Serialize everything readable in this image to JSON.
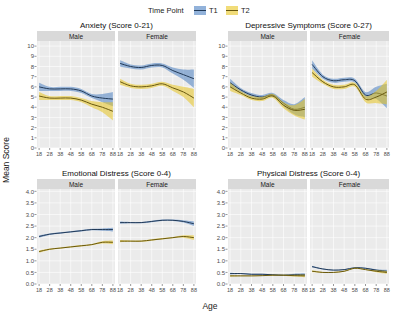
{
  "chart_data": {
    "type": "line",
    "legend_title": "Time Point",
    "legend": "top",
    "x_label": "Age",
    "y_label": "Mean Score",
    "grid": true,
    "x": [
      18,
      28,
      38,
      48,
      58,
      68,
      78,
      88
    ],
    "xlim": [
      16,
      90
    ],
    "xticks": [
      18,
      28,
      38,
      48,
      58,
      68,
      78,
      88
    ],
    "charts": [
      {
        "title": "Anxiety (Score 0-21)",
        "ylim": [
          0,
          10.5
        ],
        "yticks": [
          0,
          1,
          2,
          3,
          4,
          5,
          6,
          7,
          8,
          9,
          10
        ],
        "facets": [
          {
            "label": "Male",
            "series": [
              {
                "name": "T1",
                "color": "#4a7fc1",
                "values": [
                  6.0,
                  5.8,
                  5.8,
                  5.8,
                  5.6,
                  5.1,
                  4.9,
                  4.8
                ],
                "ci": [
                  0.4,
                  0.2,
                  0.2,
                  0.2,
                  0.2,
                  0.2,
                  0.4,
                  0.7
                ]
              },
              {
                "name": "T2",
                "color": "#e8c420",
                "values": [
                  5.1,
                  4.9,
                  4.9,
                  4.9,
                  4.7,
                  4.3,
                  4.0,
                  3.6
                ],
                "ci": [
                  0.4,
                  0.2,
                  0.2,
                  0.2,
                  0.2,
                  0.3,
                  0.5,
                  0.9
                ]
              }
            ]
          },
          {
            "label": "Female",
            "series": [
              {
                "name": "T1",
                "color": "#4a7fc1",
                "values": [
                  8.3,
                  8.0,
                  7.9,
                  8.1,
                  8.1,
                  7.6,
                  7.2,
                  6.8
                ],
                "ci": [
                  0.3,
                  0.2,
                  0.2,
                  0.2,
                  0.2,
                  0.3,
                  0.5,
                  0.9
                ]
              },
              {
                "name": "T2",
                "color": "#e8c420",
                "values": [
                  6.5,
                  6.1,
                  6.0,
                  6.1,
                  6.3,
                  5.9,
                  5.5,
                  4.9
                ],
                "ci": [
                  0.3,
                  0.2,
                  0.2,
                  0.2,
                  0.2,
                  0.3,
                  0.5,
                  0.9
                ]
              }
            ]
          }
        ]
      },
      {
        "title": "Depressive Symptoms (Score 0-27)",
        "ylim": [
          0,
          10.5
        ],
        "yticks": [
          0,
          1,
          2,
          3,
          4,
          5,
          6,
          7,
          8,
          9,
          10
        ],
        "facets": [
          {
            "label": "Male",
            "series": [
              {
                "name": "T1",
                "color": "#4a7fc1",
                "values": [
                  6.4,
                  5.7,
                  5.2,
                  5.0,
                  5.2,
                  4.4,
                  3.8,
                  4.0
                ],
                "ci": [
                  0.4,
                  0.2,
                  0.2,
                  0.2,
                  0.2,
                  0.3,
                  0.5,
                  1.0
                ]
              },
              {
                "name": "T2",
                "color": "#e8c420",
                "values": [
                  6.0,
                  5.4,
                  4.9,
                  4.8,
                  5.1,
                  4.2,
                  3.7,
                  3.8
                ],
                "ci": [
                  0.4,
                  0.2,
                  0.2,
                  0.2,
                  0.2,
                  0.3,
                  0.5,
                  1.0
                ]
              }
            ]
          },
          {
            "label": "Female",
            "series": [
              {
                "name": "T1",
                "color": "#4a7fc1",
                "values": [
                  8.2,
                  7.0,
                  6.6,
                  6.7,
                  6.6,
                  5.2,
                  5.4,
                  5.1
                ],
                "ci": [
                  0.4,
                  0.2,
                  0.2,
                  0.2,
                  0.2,
                  0.3,
                  0.6,
                  1.2
                ]
              },
              {
                "name": "T2",
                "color": "#e8c420",
                "values": [
                  7.4,
                  6.5,
                  6.0,
                  6.0,
                  6.2,
                  4.8,
                  5.0,
                  5.5
                ],
                "ci": [
                  0.4,
                  0.2,
                  0.2,
                  0.2,
                  0.2,
                  0.3,
                  0.6,
                  1.2
                ]
              }
            ]
          }
        ]
      },
      {
        "title": "Emotional Distress (Score 0-4)",
        "ylim": [
          0,
          4.1
        ],
        "yticks": [
          {
            "value": 0,
            "label": "0.0"
          },
          {
            "value": 0.5,
            "label": "0.5"
          },
          {
            "value": 1,
            "label": "1.0"
          },
          {
            "value": 1.5,
            "label": "1.5"
          },
          {
            "value": 2,
            "label": "2.0"
          },
          {
            "value": 2.5,
            "label": "2.5"
          },
          {
            "value": 3,
            "label": "3.0"
          },
          {
            "value": 3.5,
            "label": "3.5"
          },
          {
            "value": 4,
            "label": "4.0"
          }
        ],
        "facets": [
          {
            "label": "Male",
            "series": [
              {
                "name": "T1",
                "color": "#4a7fc1",
                "values": [
                  2.05,
                  2.15,
                  2.2,
                  2.25,
                  2.3,
                  2.35,
                  2.35,
                  2.35
                ],
                "ci": [
                  0.05,
                  0.03,
                  0.03,
                  0.03,
                  0.03,
                  0.03,
                  0.05,
                  0.08
                ]
              },
              {
                "name": "T2",
                "color": "#e8c420",
                "values": [
                  1.4,
                  1.5,
                  1.55,
                  1.6,
                  1.65,
                  1.7,
                  1.8,
                  1.8
                ],
                "ci": [
                  0.05,
                  0.03,
                  0.03,
                  0.03,
                  0.03,
                  0.03,
                  0.05,
                  0.08
                ]
              }
            ]
          },
          {
            "label": "Female",
            "series": [
              {
                "name": "T1",
                "color": "#4a7fc1",
                "values": [
                  2.65,
                  2.65,
                  2.65,
                  2.7,
                  2.75,
                  2.75,
                  2.7,
                  2.6
                ],
                "ci": [
                  0.05,
                  0.03,
                  0.03,
                  0.03,
                  0.03,
                  0.03,
                  0.05,
                  0.1
                ]
              },
              {
                "name": "T2",
                "color": "#e8c420",
                "values": [
                  1.85,
                  1.85,
                  1.85,
                  1.9,
                  1.95,
                  2.0,
                  2.05,
                  2.0
                ],
                "ci": [
                  0.05,
                  0.03,
                  0.03,
                  0.03,
                  0.03,
                  0.03,
                  0.05,
                  0.1
                ]
              }
            ]
          }
        ]
      },
      {
        "title": "Physical Distress (Score 0-4)",
        "ylim": [
          0,
          4.1
        ],
        "yticks": [
          {
            "value": 0,
            "label": "0.0"
          },
          {
            "value": 0.5,
            "label": "0.5"
          },
          {
            "value": 1,
            "label": "1.0"
          },
          {
            "value": 1.5,
            "label": "1.5"
          },
          {
            "value": 2,
            "label": "2.0"
          },
          {
            "value": 2.5,
            "label": "2.5"
          },
          {
            "value": 3,
            "label": "3.0"
          },
          {
            "value": 3.5,
            "label": "3.5"
          },
          {
            "value": 4,
            "label": "4.0"
          }
        ],
        "facets": [
          {
            "label": "Male",
            "series": [
              {
                "name": "T1",
                "color": "#4a7fc1",
                "values": [
                  0.45,
                  0.45,
                  0.42,
                  0.42,
                  0.4,
                  0.38,
                  0.4,
                  0.4
                ],
                "ci": [
                  0.04,
                  0.02,
                  0.02,
                  0.02,
                  0.02,
                  0.02,
                  0.04,
                  0.06
                ]
              },
              {
                "name": "T2",
                "color": "#e8c420",
                "values": [
                  0.35,
                  0.35,
                  0.35,
                  0.36,
                  0.38,
                  0.38,
                  0.36,
                  0.35
                ],
                "ci": [
                  0.04,
                  0.02,
                  0.02,
                  0.02,
                  0.02,
                  0.02,
                  0.04,
                  0.06
                ]
              }
            ]
          },
          {
            "label": "Female",
            "series": [
              {
                "name": "T1",
                "color": "#4a7fc1",
                "values": [
                  0.75,
                  0.65,
                  0.6,
                  0.62,
                  0.7,
                  0.68,
                  0.6,
                  0.55
                ],
                "ci": [
                  0.04,
                  0.02,
                  0.02,
                  0.02,
                  0.02,
                  0.02,
                  0.04,
                  0.06
                ]
              },
              {
                "name": "T2",
                "color": "#e8c420",
                "values": [
                  0.55,
                  0.5,
                  0.5,
                  0.55,
                  0.68,
                  0.62,
                  0.55,
                  0.5
                ],
                "ci": [
                  0.04,
                  0.02,
                  0.02,
                  0.02,
                  0.02,
                  0.02,
                  0.04,
                  0.06
                ]
              }
            ]
          }
        ]
      }
    ]
  }
}
